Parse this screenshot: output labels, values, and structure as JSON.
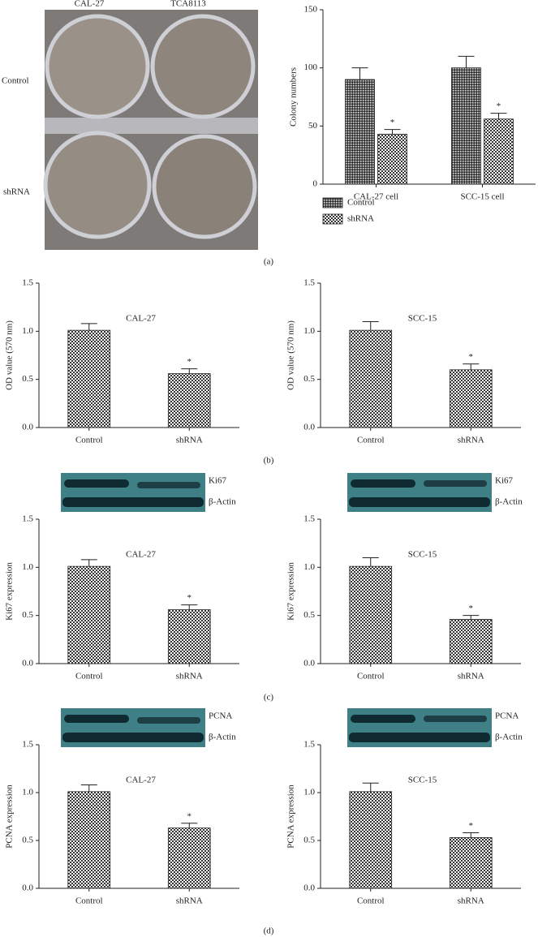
{
  "photo": {
    "columns": [
      "CAL-27",
      "TCA8113"
    ],
    "rows": [
      "Control",
      "shRNA"
    ]
  },
  "blots": [
    {
      "labels": [
        "Ki67",
        "β-Actin"
      ]
    },
    {
      "labels": [
        "Ki67",
        "β-Actin"
      ]
    },
    {
      "labels": [
        "PCNA",
        "β-Actin"
      ]
    },
    {
      "labels": [
        "PCNA",
        "β-Actin"
      ]
    }
  ],
  "panel_labels": [
    "(a)",
    "(b)",
    "(c)",
    "(d)"
  ],
  "chart_data": [
    {
      "type": "bar",
      "y_label": "Colony numbers",
      "categories": [
        "CAL-27 cell",
        "SCC-15 cell"
      ],
      "series": [
        {
          "name": "Control",
          "values": [
            90,
            100
          ],
          "errors": [
            10,
            10
          ]
        },
        {
          "name": "shRNA",
          "values": [
            43,
            56
          ],
          "errors": [
            4,
            5
          ]
        }
      ],
      "annotations": [
        {
          "text": "*",
          "series": 1,
          "category": 0
        },
        {
          "text": "*",
          "series": 1,
          "category": 1
        }
      ],
      "ylim": [
        0,
        150
      ],
      "yticks": [
        0,
        50,
        100,
        150
      ],
      "legend": "bottom"
    },
    {
      "type": "bar",
      "title": "CAL-27",
      "y_label": "OD value (570 nm)",
      "categories": [
        "Control",
        "shRNA"
      ],
      "values": [
        1.01,
        0.56
      ],
      "errors": [
        0.07,
        0.05
      ],
      "annotations": [
        {
          "text": "*",
          "category": 1
        }
      ],
      "ylim": [
        0,
        1.5
      ],
      "yticks": [
        {
          "value": 0,
          "label": "0.0"
        },
        0.5,
        {
          "value": 1,
          "label": "1.0"
        },
        1.5
      ]
    },
    {
      "type": "bar",
      "title": "SCC-15",
      "y_label": "OD value (570 nm)",
      "categories": [
        "Control",
        "shRNA"
      ],
      "values": [
        1.01,
        0.6
      ],
      "errors": [
        0.09,
        0.06
      ],
      "annotations": [
        {
          "text": "*",
          "category": 1
        }
      ],
      "ylim": [
        0,
        1.5
      ],
      "yticks": [
        {
          "value": 0,
          "label": "0.0"
        },
        0.5,
        {
          "value": 1,
          "label": "1.0"
        },
        1.5
      ]
    },
    {
      "type": "bar",
      "title": "CAL-27",
      "y_label": "Ki67 expression",
      "categories": [
        "Control",
        "shRNA"
      ],
      "values": [
        1.01,
        0.56
      ],
      "errors": [
        0.07,
        0.05
      ],
      "annotations": [
        {
          "text": "*",
          "category": 1
        }
      ],
      "ylim": [
        0,
        1.5
      ],
      "yticks": [
        {
          "value": 0,
          "label": "0.0"
        },
        0.5,
        {
          "value": 1,
          "label": "1.0"
        },
        1.5
      ]
    },
    {
      "type": "bar",
      "title": "SCC-15",
      "y_label": "Ki67 expression",
      "categories": [
        "Control",
        "shRNA"
      ],
      "values": [
        1.01,
        0.46
      ],
      "errors": [
        0.09,
        0.04
      ],
      "annotations": [
        {
          "text": "*",
          "category": 1
        }
      ],
      "ylim": [
        0,
        1.5
      ],
      "yticks": [
        {
          "value": 0,
          "label": "0.0"
        },
        0.5,
        {
          "value": 1,
          "label": "1.0"
        },
        1.5
      ]
    },
    {
      "type": "bar",
      "title": "CAL-27",
      "y_label": "PCNA expression",
      "categories": [
        "Control",
        "shRNA"
      ],
      "values": [
        1.01,
        0.63
      ],
      "errors": [
        0.07,
        0.05
      ],
      "annotations": [
        {
          "text": "*",
          "category": 1
        }
      ],
      "ylim": [
        0,
        1.5
      ],
      "yticks": [
        {
          "value": 0,
          "label": "0.0"
        },
        0.5,
        {
          "value": 1,
          "label": "1.0"
        },
        1.5
      ]
    },
    {
      "type": "bar",
      "title": "SCC-15",
      "y_label": "PCNA expression",
      "categories": [
        "Control",
        "shRNA"
      ],
      "values": [
        1.01,
        0.53
      ],
      "errors": [
        0.09,
        0.05
      ],
      "annotations": [
        {
          "text": "*",
          "category": 1
        }
      ],
      "ylim": [
        0,
        1.5
      ],
      "yticks": [
        {
          "value": 0,
          "label": "0.0"
        },
        0.5,
        {
          "value": 1,
          "label": "1.0"
        },
        1.5
      ]
    }
  ]
}
